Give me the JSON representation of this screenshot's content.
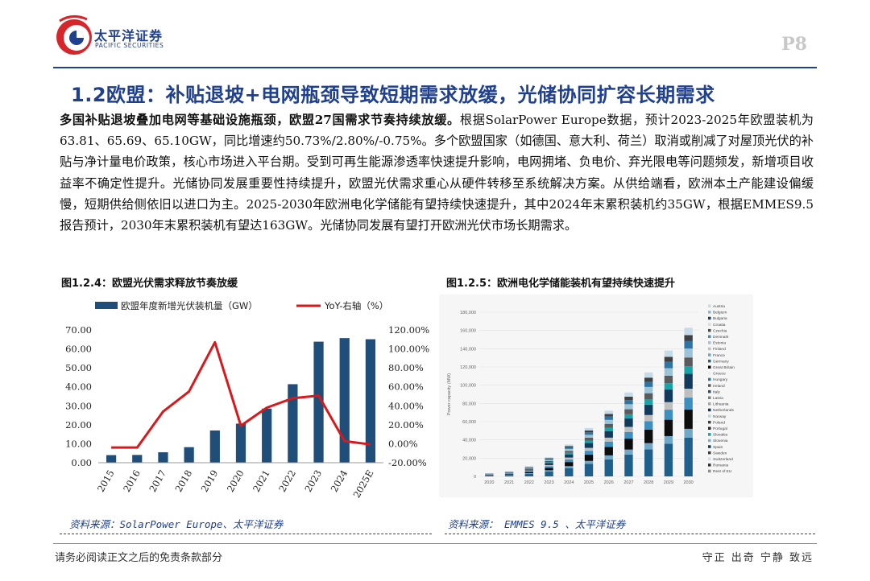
{
  "header": {
    "brand_name": "太平洋证券",
    "brand_sub": "PACIFIC SECURITIES",
    "page_number": "P8",
    "colors": {
      "brand_blue": "#1f3f8f",
      "brand_red": "#d7262b"
    }
  },
  "section_title": "1.2欧盟：补贴退坡+电网瓶颈导致短期需求放缓，光储协同扩容长期需求",
  "body": {
    "bold_lead": "多国补贴退坡叠加电网等基础设施瓶颈，欧盟27国需求节奏持续放缓。",
    "text": "根据SolarPower Europe数据，预计2023-2025年欧盟装机为63.81、65.69、65.10GW，同比增速约50.73%/2.80%/-0.75%。多个欧盟国家（如德国、意大利、荷兰）取消或削减了对屋顶光伏的补贴与净计量电价政策，核心市场进入平台期。受到可再生能源渗透率快速提升影响，电网拥堵、负电价、弃光限电等问题频发，新增项目收益率不确定性提升。光储协同发展重要性持续提升，欧盟光伏需求重心从硬件转移至系统解决方案。从供给端看，欧洲本土产能建设偏缓慢，短期供给侧依旧以进口为主。2025-2030年欧洲电化学储能有望持续快速提升，其中2024年末累积装机约35GW，根据EMMES9.5报告预计，2030年末累积装机有望达163GW。光储协同发展有望打开欧洲光伏市场长期需求。"
  },
  "figure1": {
    "title": "图1.2.4：欧盟光伏需求释放节奏放缓",
    "source": "资料来源：SolarPower Europe、太平洋证券"
  },
  "figure2": {
    "title": "图1.2.5：欧洲电化学储能装机有望持续快速提升",
    "source": "资料来源： EMMES 9.5 、太平洋证券"
  },
  "footer": {
    "disclaimer": "请务必阅读正文之后的免责条款部分",
    "motto": "守正 出奇 宁静 致远"
  },
  "chart_data": [
    {
      "type": "bar",
      "categories": [
        "2015",
        "2016",
        "2017",
        "2018",
        "2019",
        "2020",
        "2021",
        "2022",
        "2023",
        "2024",
        "2025E"
      ],
      "series": [
        {
          "name": "欧盟年度新增光伏装机量（GW）",
          "type": "bar",
          "axis": "left",
          "color": "#1f4e79",
          "values": [
            4.0,
            4.1,
            5.5,
            8.2,
            17.0,
            20.6,
            28.5,
            41.4,
            63.81,
            65.69,
            65.1
          ]
        },
        {
          "name": "YoY-右轴（%）",
          "type": "line",
          "axis": "right",
          "color": "#d7191c",
          "values": [
            -4.0,
            -4.0,
            34.0,
            55.0,
            107.0,
            19.0,
            38.0,
            48.0,
            50.73,
            2.8,
            -0.75
          ]
        }
      ],
      "yleft": {
        "min": 0,
        "max": 70,
        "ticks": [
          "0.00",
          "10.00",
          "20.00",
          "30.00",
          "40.00",
          "50.00",
          "60.00",
          "70.00"
        ]
      },
      "yright": {
        "min": -20,
        "max": 120,
        "ticks": [
          "-20.00%",
          "0.00%",
          "20.00%",
          "40.00%",
          "60.00%",
          "80.00%",
          "100.00%",
          "120.00%"
        ]
      },
      "grid": false,
      "legend": "top"
    },
    {
      "type": "bar",
      "stacked": true,
      "categories": [
        "2020",
        "2021",
        "2022",
        "2023",
        "2024",
        "2025",
        "2026",
        "2027",
        "2028",
        "2029",
        "2030"
      ],
      "totals": [
        3500,
        5500,
        11000,
        21000,
        35000,
        53000,
        72000,
        92000,
        114000,
        138000,
        163000
      ],
      "ylabel": "Power capacity (MW)",
      "yaxis": {
        "min": 0,
        "max": 180000,
        "ticks": [
          "0",
          "20,000",
          "40,000",
          "60,000",
          "80,000",
          "100,000",
          "120,000",
          "140,000",
          "160,000",
          "180,000"
        ]
      },
      "legend": "right",
      "legend_entries": [
        "Austria",
        "Belgium",
        "Bulgaria",
        "Croatia",
        "Czechia",
        "Denmark",
        "Estonia",
        "Finland",
        "France",
        "Germany",
        "Great Britain",
        "Greece",
        "Hungary",
        "Ireland",
        "Italy",
        "Latvia",
        "Lithuania",
        "Netherlands",
        "Norway",
        "Poland",
        "Portugal",
        "Slovakia",
        "Slovenia",
        "Spain",
        "Sweden",
        "Switzerland",
        "Romania",
        "Rest of EU"
      ],
      "legend_colors": [
        "#c5dbe8",
        "#8fb8cf",
        "#1c3f5f",
        "#d9d9d9",
        "#4a4a4a",
        "#3c8fbf",
        "#9dc3d6",
        "#bfbfbf",
        "#6fa8c8",
        "#1f5f8b",
        "#0d0d0d",
        "#e5eef3",
        "#2e75a3",
        "#5b5b5b",
        "#2a4d6e",
        "#7f7f7f",
        "#a6a6a6",
        "#1a3350",
        "#b7d3e2",
        "#404040",
        "#262626",
        "#16a4a8",
        "#7fb0cc",
        "#123a5c",
        "#3b3b3b",
        "#cfdfe9",
        "#2f2f2f",
        "#8e8e8e"
      ]
    }
  ]
}
